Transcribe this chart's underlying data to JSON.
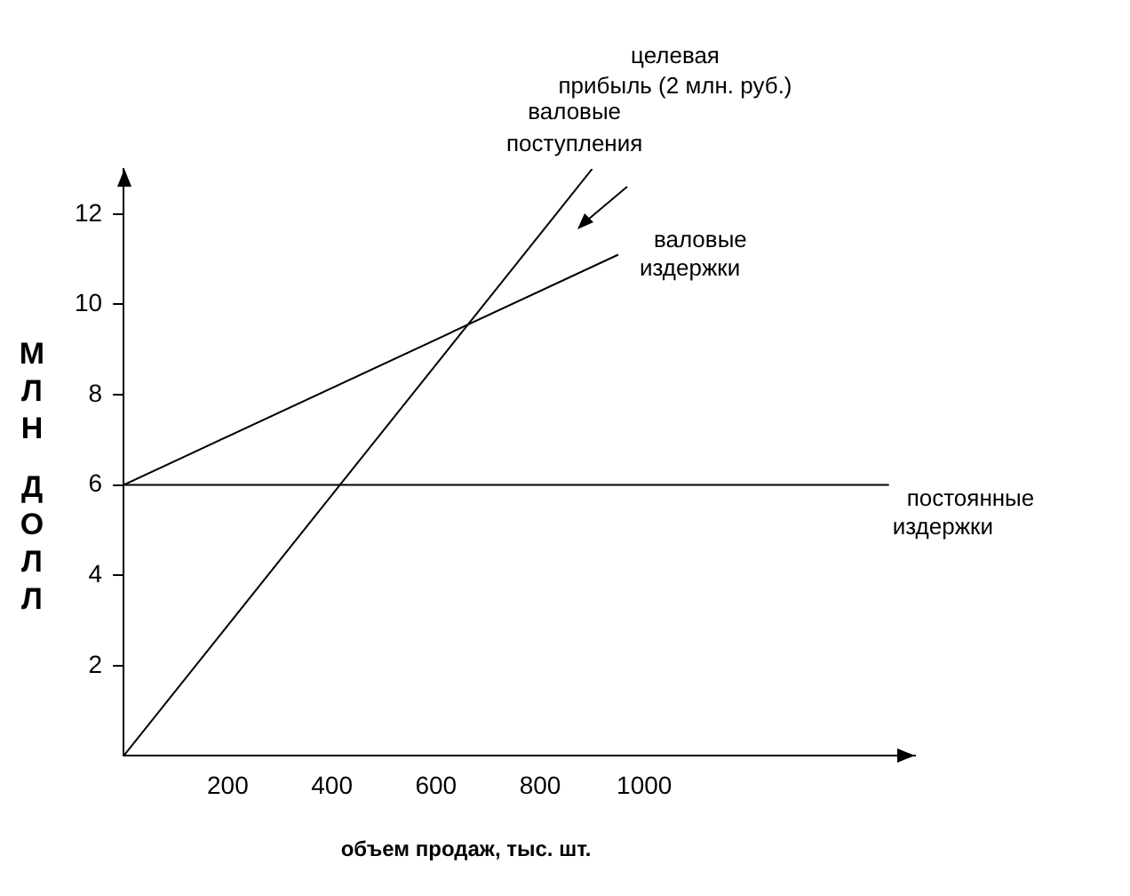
{
  "chart_data": {
    "type": "line",
    "xlabel": "объем продаж, тыс. шт.",
    "ylabel": "МЛН ДОЛЛ",
    "xlim": [
      0,
      1520
    ],
    "xticks": [
      200,
      400,
      600,
      800,
      1000
    ],
    "ylim": [
      0,
      13
    ],
    "yticks": [
      2,
      4,
      6,
      8,
      10,
      12
    ],
    "grid": false,
    "legend": false,
    "marker": "none",
    "line_style": "solid",
    "series": [
      {
        "name": "валовые поступления",
        "color": "#000000",
        "x": [
          0,
          900
        ],
        "values": [
          0,
          13
        ]
      },
      {
        "name": "валовые издержки",
        "color": "#000000",
        "x": [
          0,
          950
        ],
        "values": [
          6,
          11.1
        ]
      },
      {
        "name": "постоянные издержки",
        "color": "#000000",
        "x": [
          0,
          1470
        ],
        "values": [
          6,
          6
        ]
      }
    ],
    "annotations": [
      "целевая прибыль (2 млн. руб.)"
    ]
  }
}
